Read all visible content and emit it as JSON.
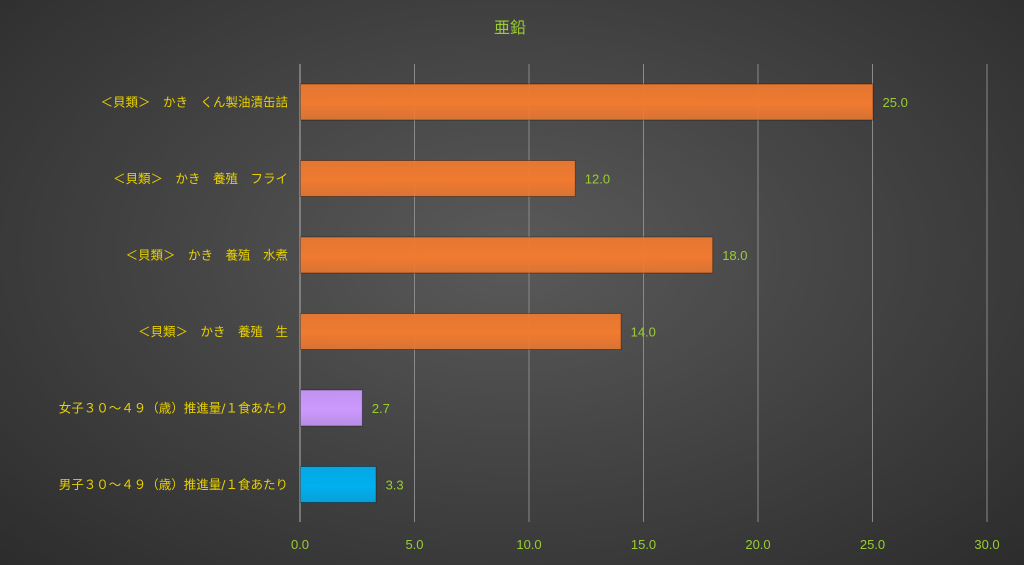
{
  "chart_data": {
    "type": "bar",
    "orientation": "horizontal",
    "title": "亜鉛",
    "categories": [
      "＜貝類＞　かき　くん製油漬缶詰",
      "＜貝類＞　かき　養殖　フライ",
      "＜貝類＞　かき　養殖　水煮",
      "＜貝類＞　かき　養殖　生",
      "女子３０～４９（歳）推進量/１食あたり",
      "男子３０～４９（歳）推進量/１食あたり"
    ],
    "values": [
      25.0,
      12.0,
      18.0,
      14.0,
      2.7,
      3.3
    ],
    "value_labels": [
      "25.0",
      "12.0",
      "18.0",
      "14.0",
      "2.7",
      "3.3"
    ],
    "bar_colors": [
      "#f07a30",
      "#f07a30",
      "#f07a30",
      "#f07a30",
      "#cc99ff",
      "#00b0f0"
    ],
    "xlim": [
      0,
      30
    ],
    "x_ticks": [
      0,
      5,
      10,
      15,
      20,
      25,
      30
    ],
    "x_tick_labels": [
      "0.0",
      "5.0",
      "10.0",
      "15.0",
      "20.0",
      "25.0",
      "30.0"
    ],
    "xlabel": "",
    "ylabel": "",
    "grid": true,
    "legend": "none"
  },
  "colors": {
    "title_text": "#9acd32",
    "category_text": "#e8d000",
    "tick_text": "#9acd32",
    "data_label_text": "#9acd32",
    "gridline": "#8a8a8a"
  }
}
